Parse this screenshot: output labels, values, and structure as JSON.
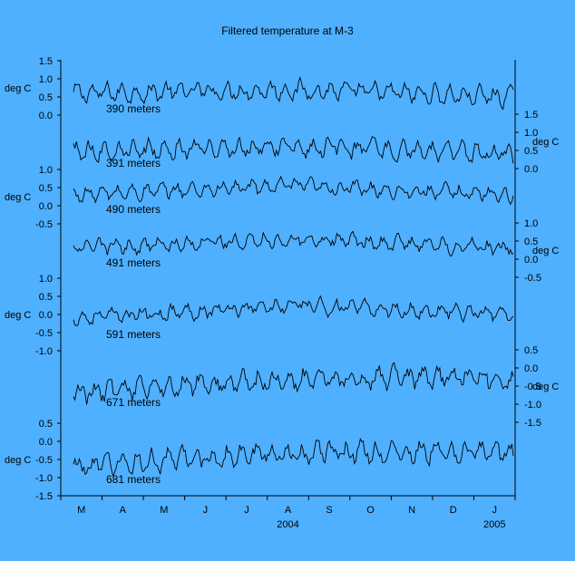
{
  "chart_data": {
    "type": "line",
    "title": "Filtered temperature at M-3",
    "ylabel": "deg C",
    "xaxis": {
      "month_labels": [
        "M",
        "A",
        "M",
        "J",
        "J",
        "A",
        "S",
        "O",
        "N",
        "D",
        "J"
      ],
      "year_labels": [
        {
          "text": "2004",
          "under_month_index": 5
        },
        {
          "text": "2005",
          "under_month_index": 10
        }
      ],
      "range": [
        "2004-03-01",
        "2005-01-31"
      ]
    },
    "series": [
      {
        "name": "390 meters",
        "ticks": [
          "1.5",
          "1.0",
          "0.5",
          "0.0"
        ],
        "tick_values": [
          1.5,
          1.0,
          0.5,
          0.0
        ],
        "axis_side": "left",
        "baseline": 0.6,
        "amplitude": 0.25,
        "trend": [
          0.0,
          0.1,
          -0.1
        ],
        "ylim": [
          0.0,
          1.5
        ]
      },
      {
        "name": "391 meters",
        "ticks": [
          "1.5",
          "1.0",
          "0.5",
          "0.0"
        ],
        "tick_values": [
          1.5,
          1.0,
          0.5,
          0.0
        ],
        "axis_side": "right",
        "baseline": 0.5,
        "amplitude": 0.25,
        "trend": [
          0.0,
          0.1,
          -0.1
        ],
        "ylim": [
          0.0,
          1.5
        ]
      },
      {
        "name": "490 meters",
        "ticks": [
          "1.0",
          "0.5",
          "0.0",
          "-0.5"
        ],
        "tick_values": [
          1.0,
          0.5,
          0.0,
          -0.5
        ],
        "axis_side": "left",
        "baseline": 0.3,
        "amplitude": 0.2,
        "trend": [
          0.0,
          0.25,
          0.0
        ],
        "ylim": [
          -0.5,
          1.0
        ]
      },
      {
        "name": "491 meters",
        "ticks": [
          "1.0",
          "0.5",
          "0.0",
          "-0.5"
        ],
        "tick_values": [
          1.0,
          0.5,
          0.0,
          -0.5
        ],
        "axis_side": "right",
        "baseline": 0.3,
        "amplitude": 0.2,
        "trend": [
          0.0,
          0.25,
          0.0
        ],
        "ylim": [
          -0.5,
          1.0
        ]
      },
      {
        "name": "591 meters",
        "ticks": [
          "1.0",
          "0.5",
          "0.0",
          "-0.5",
          "-1.0"
        ],
        "tick_values": [
          1.0,
          0.5,
          0.0,
          -0.5,
          -1.0
        ],
        "axis_side": "left",
        "baseline": 0.0,
        "amplitude": 0.2,
        "trend": [
          -0.1,
          0.25,
          0.0
        ],
        "ylim": [
          -1.0,
          1.0
        ]
      },
      {
        "name": "671 meters",
        "ticks": [
          "0.5",
          "0.0",
          "-0.5",
          "-1.0",
          "-1.5"
        ],
        "tick_values": [
          0.5,
          0.0,
          -0.5,
          -1.0,
          -1.5
        ],
        "axis_side": "right",
        "baseline": -0.3,
        "amplitude": 0.3,
        "trend": [
          -0.4,
          0.0,
          0.0
        ],
        "ylim": [
          -1.5,
          0.5
        ]
      },
      {
        "name": "681 meters",
        "ticks": [
          "0.5",
          "0.0",
          "-0.5",
          "-1.0",
          "-1.5"
        ],
        "tick_values": [
          0.5,
          0.0,
          -0.5,
          -1.0,
          -1.5
        ],
        "axis_side": "left",
        "baseline": -0.3,
        "amplitude": 0.3,
        "trend": [
          -0.4,
          0.0,
          0.0
        ],
        "ylim": [
          -1.5,
          0.5
        ]
      }
    ]
  }
}
